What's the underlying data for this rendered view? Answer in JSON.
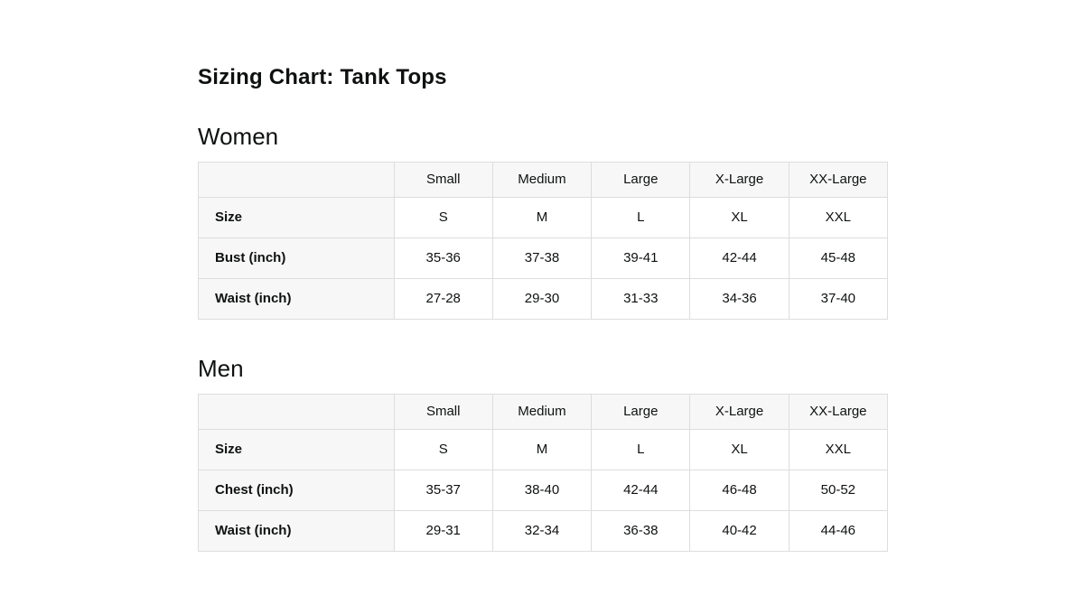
{
  "page": {
    "title": "Sizing Chart: Tank Tops"
  },
  "colors": {
    "background": "#ffffff",
    "text": "#0f1111",
    "table_border": "#dddddd",
    "header_row_bg": "#f7f7f7",
    "label_column_bg": "#f7f7f7"
  },
  "sections": [
    {
      "heading": "Women",
      "table": {
        "columns": [
          "",
          "Small",
          "Medium",
          "Large",
          "X-Large",
          "XX-Large"
        ],
        "rows": [
          {
            "label": "Size",
            "values": [
              "S",
              "M",
              "L",
              "XL",
              "XXL"
            ]
          },
          {
            "label": "Bust (inch)",
            "values": [
              "35-36",
              "37-38",
              "39-41",
              "42-44",
              "45-48"
            ]
          },
          {
            "label": "Waist (inch)",
            "values": [
              "27-28",
              "29-30",
              "31-33",
              "34-36",
              "37-40"
            ]
          }
        ]
      }
    },
    {
      "heading": "Men",
      "table": {
        "columns": [
          "",
          "Small",
          "Medium",
          "Large",
          "X-Large",
          "XX-Large"
        ],
        "rows": [
          {
            "label": "Size",
            "values": [
              "S",
              "M",
              "L",
              "XL",
              "XXL"
            ]
          },
          {
            "label": "Chest (inch)",
            "values": [
              "35-37",
              "38-40",
              "42-44",
              "46-48",
              "50-52"
            ]
          },
          {
            "label": "Waist (inch)",
            "values": [
              "29-31",
              "32-34",
              "36-38",
              "40-42",
              "44-46"
            ]
          }
        ]
      }
    }
  ]
}
